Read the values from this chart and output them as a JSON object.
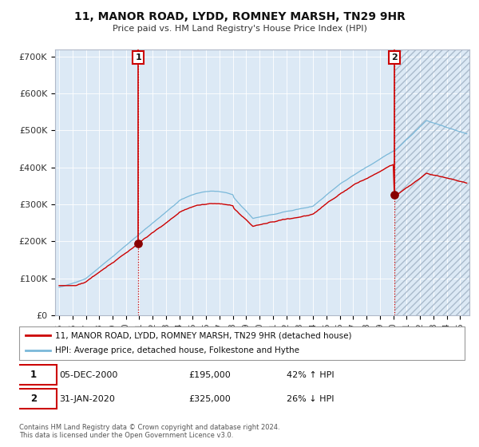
{
  "title": "11, MANOR ROAD, LYDD, ROMNEY MARSH, TN29 9HR",
  "subtitle": "Price paid vs. HM Land Registry's House Price Index (HPI)",
  "legend_line1": "11, MANOR ROAD, LYDD, ROMNEY MARSH, TN29 9HR (detached house)",
  "legend_line2": "HPI: Average price, detached house, Folkestone and Hythe",
  "annotation1_date": "05-DEC-2000",
  "annotation1_price": "£195,000",
  "annotation1_hpi": "42% ↑ HPI",
  "annotation2_date": "31-JAN-2020",
  "annotation2_price": "£325,000",
  "annotation2_hpi": "26% ↓ HPI",
  "footer": "Contains HM Land Registry data © Crown copyright and database right 2024.\nThis data is licensed under the Open Government Licence v3.0.",
  "sale1_year": 2000.92,
  "sale1_value": 195000,
  "sale2_year": 2020.08,
  "sale2_value": 325000,
  "hpi_color": "#7ab8d9",
  "price_color": "#cc0000",
  "sale_dot_color": "#880000",
  "vline_color": "#cc0000",
  "bg_color": "#dce9f5",
  "plot_bg": "#ffffff",
  "label_color": "#333333",
  "ylim": [
    0,
    720000
  ],
  "ytick_vals": [
    0,
    100000,
    200000,
    300000,
    400000,
    500000,
    600000,
    700000
  ],
  "ytick_labels": [
    "£0",
    "£100K",
    "£200K",
    "£300K",
    "£400K",
    "£500K",
    "£600K",
    "£700K"
  ],
  "xlim_start": 1994.7,
  "xlim_end": 2025.7,
  "xtick_years": [
    1995,
    1996,
    1997,
    1998,
    1999,
    2000,
    2001,
    2002,
    2003,
    2004,
    2005,
    2006,
    2007,
    2008,
    2009,
    2010,
    2011,
    2012,
    2013,
    2014,
    2015,
    2016,
    2017,
    2018,
    2019,
    2020,
    2021,
    2022,
    2023,
    2024,
    2025
  ],
  "hatch_color": "#aabbcc"
}
